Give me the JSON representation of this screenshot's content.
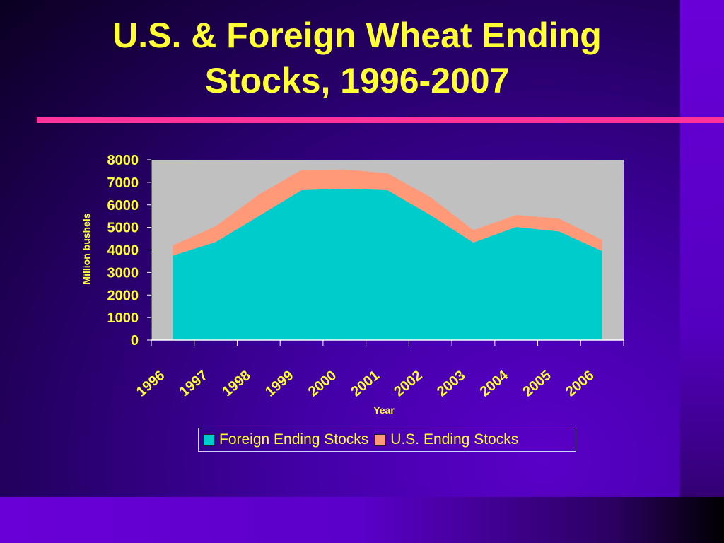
{
  "slide": {
    "title_line1": "U.S. & Foreign Wheat Ending",
    "title_line2": "Stocks, 1996-2007",
    "colors": {
      "title": "#ffff33",
      "divider": "#ff3399",
      "background": "#3a0090",
      "plot_bg": "#c0c0c0"
    }
  },
  "chart_data": {
    "type": "area",
    "stacked": true,
    "x": [
      "1996",
      "1997",
      "1998",
      "1999",
      "2000",
      "2001",
      "2002",
      "2003",
      "2004",
      "2005",
      "2006"
    ],
    "series": [
      {
        "name": "Foreign Ending Stocks",
        "color": "#00cccc",
        "values": [
          3750,
          4350,
          5500,
          6650,
          6720,
          6650,
          5550,
          4330,
          5020,
          4820,
          3950
        ]
      },
      {
        "name": "U.S. Ending Stocks",
        "color": "#ff9977",
        "values": [
          450,
          700,
          950,
          900,
          850,
          750,
          800,
          550,
          530,
          570,
          500
        ]
      }
    ],
    "xlabel": "Year",
    "ylabel": "Million bushels",
    "ylim": [
      0,
      8000
    ],
    "yticks": [
      0,
      1000,
      2000,
      3000,
      4000,
      5000,
      6000,
      7000,
      8000
    ],
    "grid": false,
    "legend_position": "bottom"
  }
}
